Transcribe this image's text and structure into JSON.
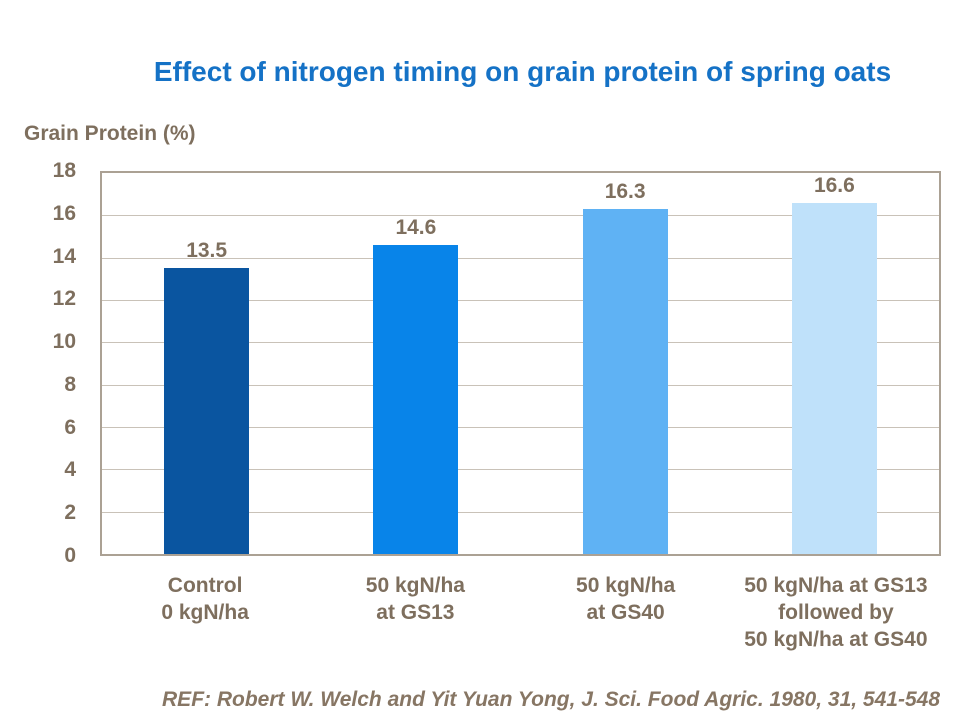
{
  "slide": {
    "title": "Effect of nitrogen timing on grain protein of spring oats",
    "reference": "REF: Robert W. Welch and Yit Yuan Yong, J. Sci. Food Agric. 1980, 31, 541-548"
  },
  "chart_data": {
    "type": "bar",
    "title": "Effect of nitrogen timing on grain protein of spring oats",
    "ylabel": "Grain Protein (%)",
    "xlabel": "",
    "categories": [
      "Control\n0 kgN/ha",
      "50 kgN/ha\nat GS13",
      "50 kgN/ha\nat GS40",
      "50 kgN/ha at GS13\nfollowed by\n50 kgN/ha at GS40"
    ],
    "values": [
      13.5,
      14.6,
      16.3,
      16.6
    ],
    "data_labels": [
      "13.5",
      "14.6",
      "16.3",
      "16.6"
    ],
    "ylim": [
      0,
      18
    ],
    "yticks": [
      18,
      16,
      14,
      12,
      10,
      8,
      6,
      4,
      2,
      0
    ],
    "grid": true,
    "legend_position": "none",
    "bar_colors": [
      "#0A55A0",
      "#0884E9",
      "#5FB2F4",
      "#BFE1FA"
    ]
  },
  "colors": {
    "title_text": "#1572C6",
    "chart_text": "#7E6F5E",
    "reference_text": "#877664",
    "gridline": "#C9C2B8",
    "axis_border": "#ABA194",
    "background": "#FFFFFF"
  }
}
